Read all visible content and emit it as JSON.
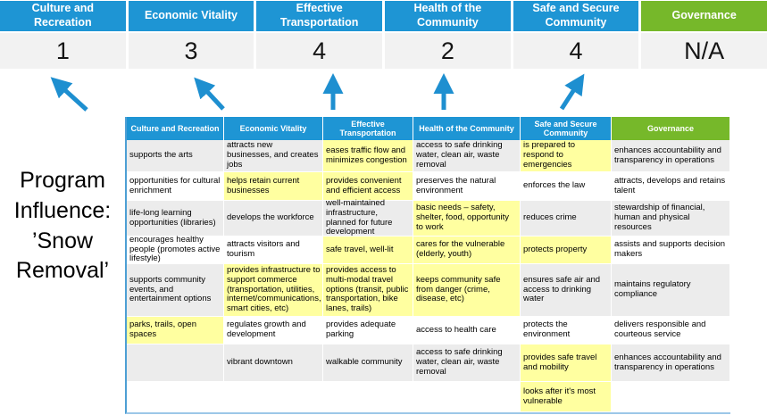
{
  "slide": {
    "title": "Program Influence: ’Snow Removal’"
  },
  "colors": {
    "blue": "#1e95d4",
    "green": "#76b82a",
    "highlight": "#ffffa0",
    "row_band": "#ececec",
    "score_bg": "#f2f2f2",
    "arrow_blue": "#1e8fd0"
  },
  "scoreboard": {
    "items": [
      {
        "label": "Culture and Recreation",
        "score": "1",
        "theme": "blue"
      },
      {
        "label": "Economic Vitality",
        "score": "3",
        "theme": "blue"
      },
      {
        "label": "Effective Transportation",
        "score": "4",
        "theme": "blue"
      },
      {
        "label": "Health of the Community",
        "score": "2",
        "theme": "blue"
      },
      {
        "label": "Safe and Secure Community",
        "score": "4",
        "theme": "blue"
      },
      {
        "label": "Governance",
        "score": "N/A",
        "theme": "green"
      }
    ]
  },
  "matrix": {
    "headers": [
      {
        "label": "Culture and Recreation",
        "theme": "blue"
      },
      {
        "label": "Economic Vitality",
        "theme": "blue"
      },
      {
        "label": "Effective Transportation",
        "theme": "blue"
      },
      {
        "label": "Health of the Community",
        "theme": "blue"
      },
      {
        "label": "Safe and Secure Community",
        "theme": "blue"
      },
      {
        "label": "Governance",
        "theme": "green"
      }
    ],
    "rows": [
      {
        "cells": [
          {
            "text": "supports the arts",
            "highlight": false
          },
          {
            "text": "attracts new businesses, and creates jobs",
            "highlight": false
          },
          {
            "text": "eases traffic flow and minimizes congestion",
            "highlight": true
          },
          {
            "text": "access to safe drinking water, clean air, waste removal",
            "highlight": false
          },
          {
            "text": "is prepared to respond to emergencies",
            "highlight": true
          },
          {
            "text": "enhances accountability and transparency in operations",
            "highlight": false
          }
        ]
      },
      {
        "cells": [
          {
            "text": "opportunities for cultural enrichment",
            "highlight": false
          },
          {
            "text": "helps retain current businesses",
            "highlight": true
          },
          {
            "text": "provides convenient and efficient access",
            "highlight": true
          },
          {
            "text": "preserves the natural environment",
            "highlight": false
          },
          {
            "text": "enforces the law",
            "highlight": false
          },
          {
            "text": "attracts, develops and retains talent",
            "highlight": false
          }
        ]
      },
      {
        "cells": [
          {
            "text": "life-long learning opportunities (libraries)",
            "highlight": false
          },
          {
            "text": "develops the workforce",
            "highlight": false
          },
          {
            "text": "well-maintained infrastructure, planned for future development",
            "highlight": false
          },
          {
            "text": "basic needs – safety, shelter, food, opportunity to work",
            "highlight": true
          },
          {
            "text": "reduces crime",
            "highlight": false
          },
          {
            "text": "stewardship of financial, human and physical resources",
            "highlight": false
          }
        ]
      },
      {
        "cells": [
          {
            "text": "encourages healthy people (promotes active lifestyle)",
            "highlight": false
          },
          {
            "text": "attracts visitors and tourism",
            "highlight": false
          },
          {
            "text": "safe travel, well-lit",
            "highlight": true
          },
          {
            "text": "cares for the vulnerable (elderly, youth)",
            "highlight": true
          },
          {
            "text": "protects property",
            "highlight": true
          },
          {
            "text": "assists and supports decision makers",
            "highlight": false
          }
        ]
      },
      {
        "cells": [
          {
            "text": "supports community events, and entertainment options",
            "highlight": false
          },
          {
            "text": "provides infrastructure to support commerce (transportation, utilities, internet/communications, smart cities, etc)",
            "highlight": true
          },
          {
            "text": "provides access to multi-modal travel options (transit, public transportation, bike lanes, trails)",
            "highlight": true
          },
          {
            "text": "keeps community safe from danger (crime, disease, etc)",
            "highlight": true
          },
          {
            "text": "ensures safe air and access to drinking water",
            "highlight": false
          },
          {
            "text": "maintains regulatory compliance",
            "highlight": false
          }
        ]
      },
      {
        "cells": [
          {
            "text": "parks, trails, open spaces",
            "highlight": true
          },
          {
            "text": "regulates growth and development",
            "highlight": false
          },
          {
            "text": "provides adequate parking",
            "highlight": false
          },
          {
            "text": "access to health care",
            "highlight": false
          },
          {
            "text": "protects the environment",
            "highlight": false
          },
          {
            "text": "delivers responsible and courteous service",
            "highlight": false
          }
        ]
      },
      {
        "cells": [
          {
            "text": "",
            "highlight": false
          },
          {
            "text": "vibrant downtown",
            "highlight": false
          },
          {
            "text": "walkable community",
            "highlight": false
          },
          {
            "text": "access to safe drinking water, clean air, waste removal",
            "highlight": false
          },
          {
            "text": "provides safe travel and mobility",
            "highlight": true
          },
          {
            "text": "enhances accountability and transparency in operations",
            "highlight": false
          }
        ]
      },
      {
        "cells": [
          {
            "text": "",
            "highlight": false
          },
          {
            "text": "",
            "highlight": false
          },
          {
            "text": "",
            "highlight": false
          },
          {
            "text": "",
            "highlight": false
          },
          {
            "text": "looks after it's most vulnerable",
            "highlight": true
          },
          {
            "text": "",
            "highlight": false
          }
        ]
      }
    ]
  }
}
